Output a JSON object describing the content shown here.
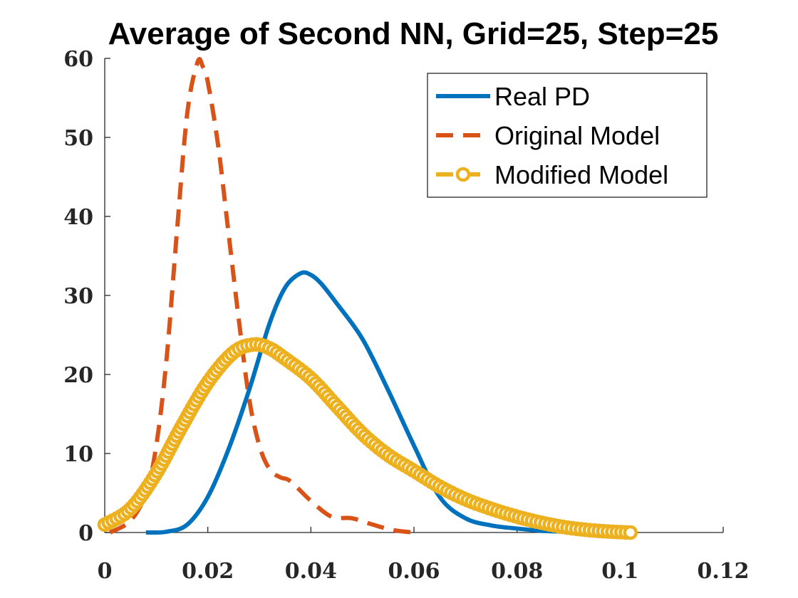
{
  "chart_data": {
    "type": "line",
    "title": "Average of Second NN, Grid=25, Step=25",
    "xlabel": "",
    "ylabel": "",
    "xlim": [
      0,
      0.12
    ],
    "ylim": [
      0,
      60
    ],
    "x_ticks": [
      0,
      0.02,
      0.04,
      0.06,
      0.08,
      0.1,
      0.12
    ],
    "x_tick_labels": [
      "0",
      "0.02",
      "0.04",
      "0.06",
      "0.08",
      "0.1",
      "0.12"
    ],
    "y_ticks": [
      0,
      10,
      20,
      30,
      40,
      50,
      60
    ],
    "y_tick_labels": [
      "0",
      "10",
      "20",
      "30",
      "40",
      "50",
      "60"
    ],
    "grid": false,
    "legend_position": "top-right",
    "series": [
      {
        "name": "Real PD",
        "style": "solid",
        "color": "#0072BD",
        "x": [
          0.008,
          0.012,
          0.016,
          0.02,
          0.024,
          0.028,
          0.032,
          0.035,
          0.038,
          0.04,
          0.042,
          0.045,
          0.05,
          0.055,
          0.06,
          0.065,
          0.07,
          0.075,
          0.08,
          0.085,
          0.09
        ],
        "y": [
          0,
          0.1,
          1,
          4.5,
          10.5,
          18,
          26.5,
          31,
          32.8,
          32.6,
          31.5,
          29,
          24.5,
          18,
          11,
          4.5,
          1.8,
          0.9,
          0.5,
          0.2,
          0.1
        ]
      },
      {
        "name": "Original Model",
        "style": "dashed",
        "color": "#D95319",
        "x": [
          0.001,
          0.005,
          0.008,
          0.01,
          0.012,
          0.014,
          0.016,
          0.018,
          0.019,
          0.02,
          0.022,
          0.024,
          0.026,
          0.028,
          0.03,
          0.032,
          0.034,
          0.036,
          0.04,
          0.044,
          0.048,
          0.052,
          0.056,
          0.06
        ],
        "y": [
          0,
          1.5,
          5,
          11,
          22,
          38,
          53,
          59.5,
          59,
          57,
          49,
          38,
          27,
          17,
          11,
          8,
          7,
          6.5,
          4,
          2,
          1.8,
          1,
          0.3,
          0
        ]
      },
      {
        "name": "Modified Model",
        "style": "dash-circle",
        "color": "#EDB120",
        "x": [
          0,
          0.005,
          0.01,
          0.015,
          0.02,
          0.025,
          0.029,
          0.032,
          0.035,
          0.04,
          0.045,
          0.05,
          0.055,
          0.06,
          0.065,
          0.07,
          0.075,
          0.08,
          0.085,
          0.09,
          0.095,
          0.1,
          0.102
        ],
        "y": [
          1,
          3,
          7.5,
          13.5,
          19,
          22.8,
          23.8,
          23.3,
          22,
          19.5,
          16,
          12.5,
          9.8,
          7.8,
          5.8,
          4.2,
          3,
          2,
          1.2,
          0.6,
          0.25,
          0.05,
          0
        ]
      }
    ]
  }
}
